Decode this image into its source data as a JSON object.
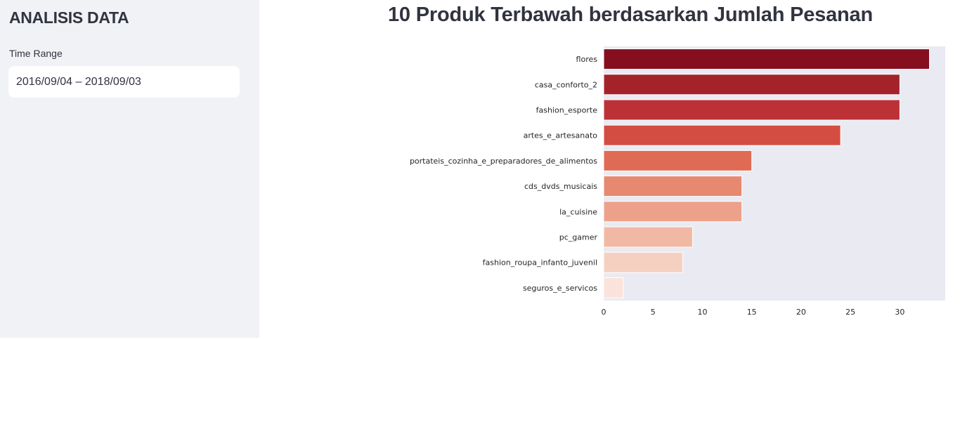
{
  "sidebar": {
    "title": "ANALISIS DATA",
    "time_range_label": "Time Range",
    "time_range_value": "2016/09/04 – 2018/09/03"
  },
  "main": {
    "title": "10 Produk Terbawah berdasarkan Jumlah Pesanan"
  },
  "chart_data": {
    "type": "bar",
    "orientation": "horizontal",
    "title": "",
    "xlabel": "",
    "ylabel": "",
    "categories": [
      "flores",
      "casa_conforto_2",
      "fashion_esporte",
      "artes_e_artesanato",
      "portateis_cozinha_e_preparadores_de_alimentos",
      "cds_dvds_musicais",
      "la_cuisine",
      "pc_gamer",
      "fashion_roupa_infanto_juvenil",
      "seguros_e_servicos"
    ],
    "values": [
      33,
      30,
      30,
      24,
      15,
      14,
      14,
      9,
      8,
      2
    ],
    "xlim": [
      0,
      34.6
    ],
    "xticks": [
      0,
      5,
      10,
      15,
      20,
      25,
      30
    ],
    "grid": false,
    "plot_background": "#eaeaf2",
    "colors": [
      "#860f1f",
      "#a4232b",
      "#bc3136",
      "#d44d42",
      "#e06b54",
      "#e78971",
      "#eda18a",
      "#f1b9a4",
      "#f5d0c1",
      "#fbe3db"
    ]
  }
}
